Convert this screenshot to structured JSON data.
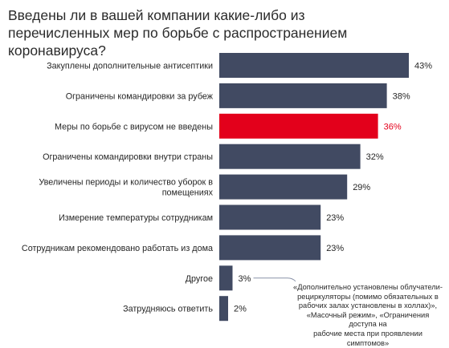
{
  "chart_data": {
    "type": "bar",
    "orientation": "horizontal",
    "title": "Введены ли в вашей компании какие-либо из перечисленных мер по борьбе с распространением коронавируса?",
    "categories": [
      [
        "Закуплены дополнительные антисептики"
      ],
      [
        "Ограничены командировки за рубеж"
      ],
      [
        "Меры по борьбе с вирусом не введены"
      ],
      [
        "Ограничены командировки внутри страны"
      ],
      [
        "Увеличены периоды и количество уборок в",
        "помещениях"
      ],
      [
        "Измерение температуры сотрудникам"
      ],
      [
        "Сотрудникам рекомендовано работать из дома"
      ],
      [
        "Другое"
      ],
      [
        "Затрудняюсь ответить"
      ]
    ],
    "values": [
      43,
      38,
      36,
      32,
      29,
      23,
      23,
      3,
      2
    ],
    "value_labels": [
      "43%",
      "38%",
      "36%",
      "32%",
      "29%",
      "23%",
      "23%",
      "3%",
      "2%"
    ],
    "highlight_index": 2,
    "colors": {
      "bar": "#414a62",
      "highlight": "#e3001b",
      "highlight_text": "#e3001b",
      "connector": "#8a93a8"
    },
    "xlim": [
      0,
      43
    ],
    "grid": false,
    "legend": "none",
    "annotation": {
      "target_index": 7,
      "lines": [
        "«Дополнительно установлены облучатели-",
        "рециркуляторы (помимо обязательных в",
        "рабочих залах установлены в холлах)»,",
        "«Масочный режим», «Ограничения доступа на",
        "рабочие места при проявлении симптомов»"
      ]
    }
  }
}
